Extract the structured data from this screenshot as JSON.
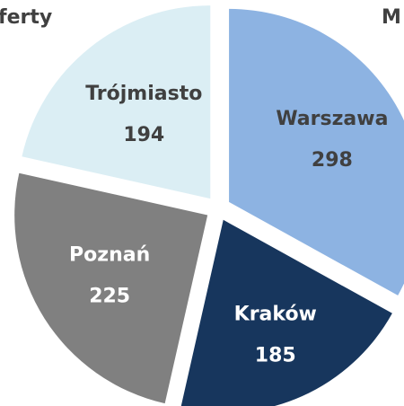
{
  "chart_data": {
    "type": "pie",
    "title": "ferty",
    "subtitle": "M",
    "categories": [
      "Warszawa",
      "Kraków",
      "Poznań",
      "Trójmiasto"
    ],
    "values": [
      298,
      185,
      225,
      194
    ],
    "colors": [
      "#8db3e2",
      "#17365d",
      "#808080",
      "#dbeef4"
    ],
    "label_colors": [
      "#404040",
      "#ffffff",
      "#ffffff",
      "#404040"
    ]
  }
}
